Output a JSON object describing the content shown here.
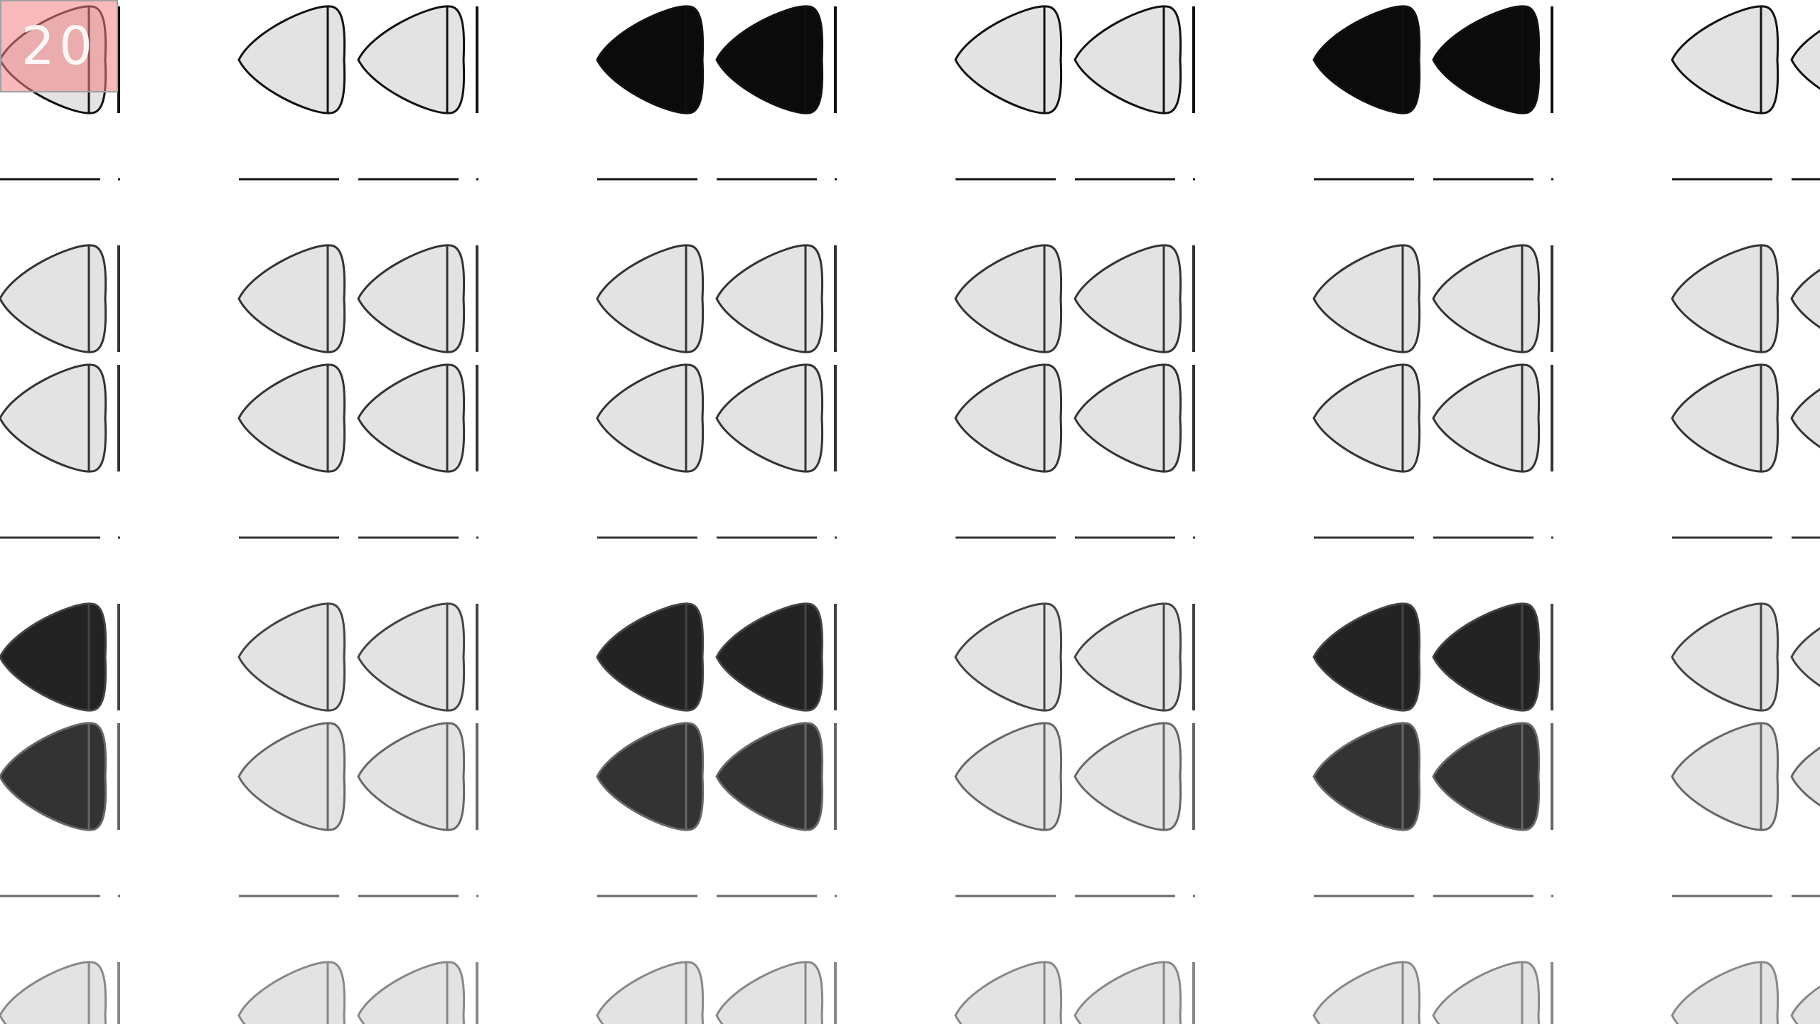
{
  "badge": {
    "text": "20",
    "fill_color": "#f08080"
  },
  "pattern": {
    "motif": "pick-icon",
    "columns": 6,
    "row_groups": 5,
    "colors": {
      "background": "#ffffff",
      "light_fill": "#e3e3e3",
      "row_outline": [
        "#111111",
        "#333333",
        "#444444",
        "#666666",
        "#888888"
      ],
      "dark_fill": [
        "#0b0b0b",
        "#232323",
        "#333333"
      ]
    },
    "dark_tiles_row_1": [
      2,
      4
    ],
    "dark_tiles_row_3": [
      0,
      2,
      4
    ]
  }
}
